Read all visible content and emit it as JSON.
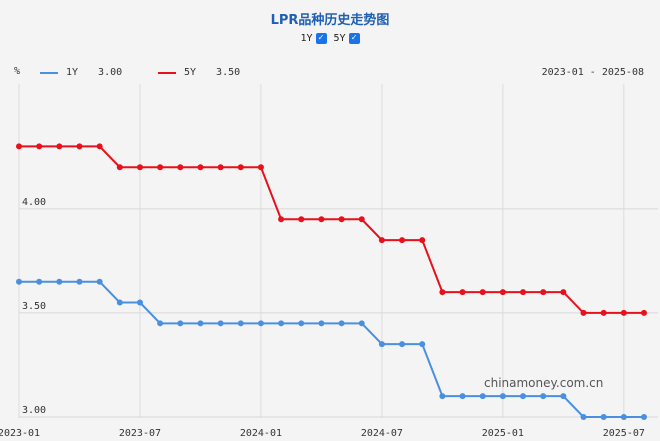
{
  "header": {
    "title": "LPR品种历史走势图",
    "toggles": [
      {
        "label": "1Y",
        "checked": true
      },
      {
        "label": "5Y",
        "checked": true
      }
    ]
  },
  "legend": {
    "unit": "%",
    "items": [
      {
        "name": "1Y",
        "value": "3.00",
        "color": "#4a90e2"
      },
      {
        "name": "5Y",
        "value": "3.50",
        "color": "#e8101a"
      }
    ],
    "date_range": "2023-01 - 2025-08"
  },
  "watermark": "chinamoney.com.cn",
  "chart_data": {
    "type": "line",
    "xlabel": "",
    "ylabel": "%",
    "x": [
      "2023-01",
      "2023-02",
      "2023-03",
      "2023-04",
      "2023-05",
      "2023-06",
      "2023-07",
      "2023-08",
      "2023-09",
      "2023-10",
      "2023-11",
      "2023-12",
      "2024-01",
      "2024-02",
      "2024-03",
      "2024-04",
      "2024-05",
      "2024-06",
      "2024-07",
      "2024-08",
      "2024-09",
      "2024-10",
      "2024-11",
      "2024-12",
      "2025-01",
      "2025-02",
      "2025-03",
      "2025-04",
      "2025-05",
      "2025-06",
      "2025-07",
      "2025-08"
    ],
    "x_ticks": [
      "2023-01",
      "2023-07",
      "2024-01",
      "2024-07",
      "2025-01",
      "2025-07"
    ],
    "y_ticks": [
      "3.00",
      "3.50",
      "4.00"
    ],
    "ylim": [
      2.995,
      4.6
    ],
    "grid": true,
    "series": [
      {
        "name": "1Y",
        "color": "#4a90e2",
        "values": [
          3.65,
          3.65,
          3.65,
          3.65,
          3.65,
          3.55,
          3.55,
          3.45,
          3.45,
          3.45,
          3.45,
          3.45,
          3.45,
          3.45,
          3.45,
          3.45,
          3.45,
          3.45,
          3.35,
          3.35,
          3.35,
          3.1,
          3.1,
          3.1,
          3.1,
          3.1,
          3.1,
          3.1,
          3.0,
          3.0,
          3.0,
          3.0
        ]
      },
      {
        "name": "5Y",
        "color": "#e8101a",
        "values": [
          4.3,
          4.3,
          4.3,
          4.3,
          4.3,
          4.2,
          4.2,
          4.2,
          4.2,
          4.2,
          4.2,
          4.2,
          4.2,
          3.95,
          3.95,
          3.95,
          3.95,
          3.95,
          3.85,
          3.85,
          3.85,
          3.6,
          3.6,
          3.6,
          3.6,
          3.6,
          3.6,
          3.6,
          3.5,
          3.5,
          3.5,
          3.5
        ]
      }
    ]
  }
}
